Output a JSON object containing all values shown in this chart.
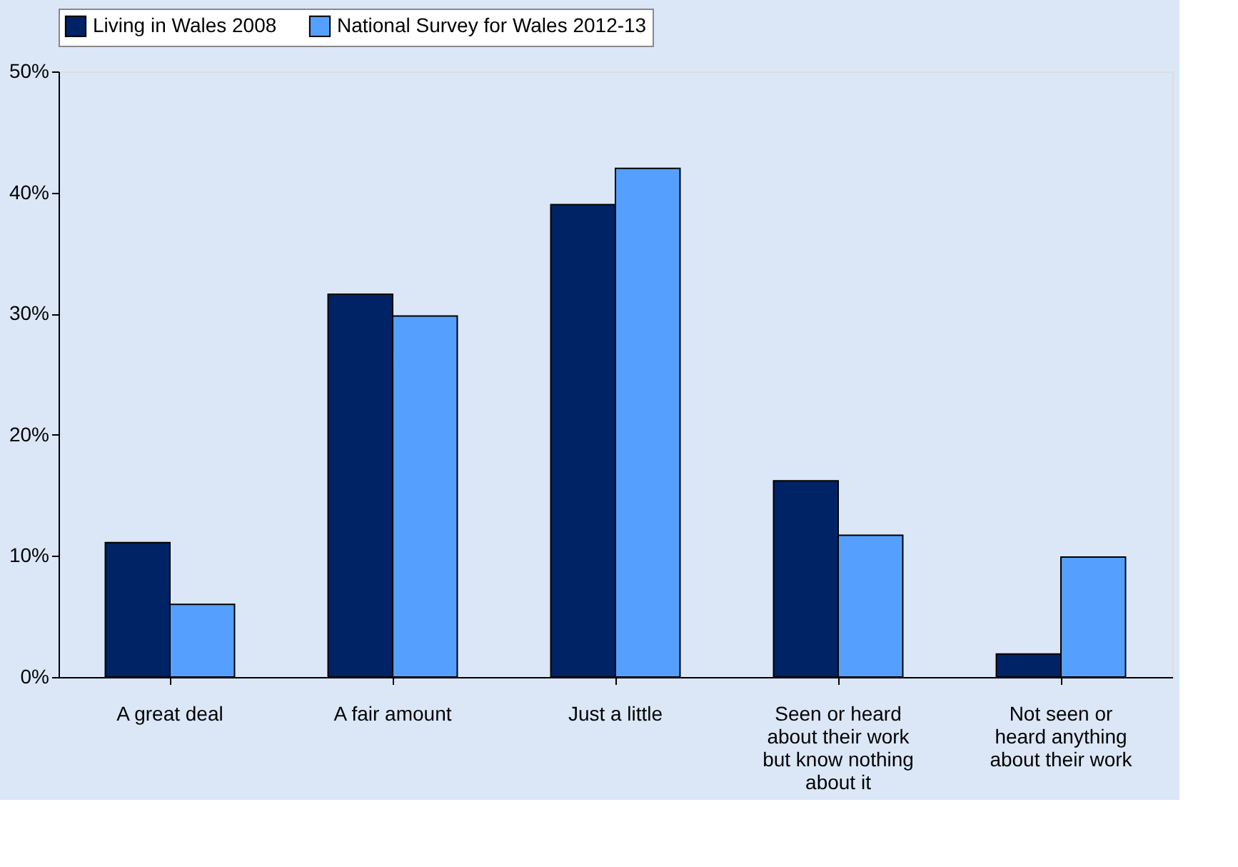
{
  "chart_data": {
    "type": "bar",
    "categories": [
      "A great deal",
      "A fair amount",
      "Just a little",
      "Seen or heard about their work but know nothing about it",
      "Not seen or heard anything about their work"
    ],
    "series": [
      {
        "name": "Living in Wales 2008",
        "color": "#002366",
        "values": [
          11.1,
          31.6,
          39.0,
          16.2,
          1.9
        ]
      },
      {
        "name": "National Survey for Wales 2012-13",
        "color": "#55a0ff",
        "values": [
          6.0,
          29.8,
          42.0,
          11.7,
          9.9
        ]
      }
    ],
    "ylim": [
      0,
      50
    ],
    "yticks": [
      {
        "value": 0,
        "label": "0%"
      },
      {
        "value": 10,
        "label": "10%"
      },
      {
        "value": 20,
        "label": "20%"
      },
      {
        "value": 30,
        "label": "30%"
      },
      {
        "value": 40,
        "label": "40%"
      },
      {
        "value": 50,
        "label": "50%"
      }
    ],
    "legend": "top",
    "grid": false
  }
}
